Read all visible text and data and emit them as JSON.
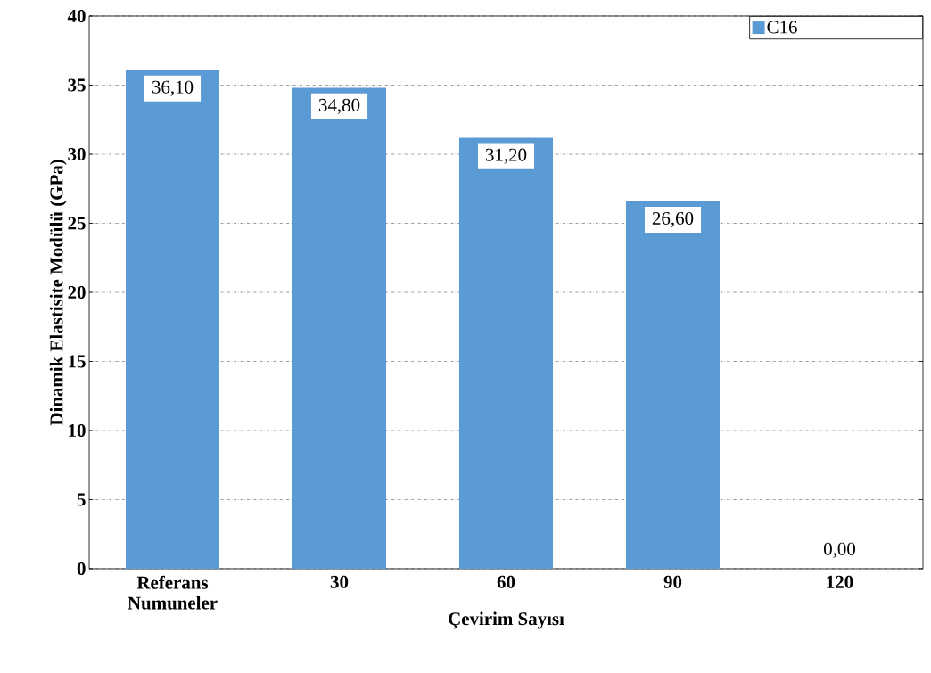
{
  "chart_data": {
    "type": "bar",
    "xlabel": "Çevirim Sayısı",
    "ylabel": "Dinamik Elastisite Modülü (GPa)",
    "categories": [
      "Referans Numuneler",
      "30",
      "60",
      "90",
      "120"
    ],
    "series": [
      {
        "name": "C16",
        "color": "#5b9bd5",
        "values": [
          36.1,
          34.8,
          31.2,
          26.6,
          0
        ],
        "value_labels": [
          "36,10",
          "34,80",
          "31,20",
          "26,60",
          "0,00"
        ]
      }
    ],
    "ylim": [
      0,
      40
    ],
    "yticks": [
      0,
      5,
      10,
      15,
      20,
      25,
      30,
      35,
      40
    ],
    "grid": "y",
    "legend": "top right"
  }
}
